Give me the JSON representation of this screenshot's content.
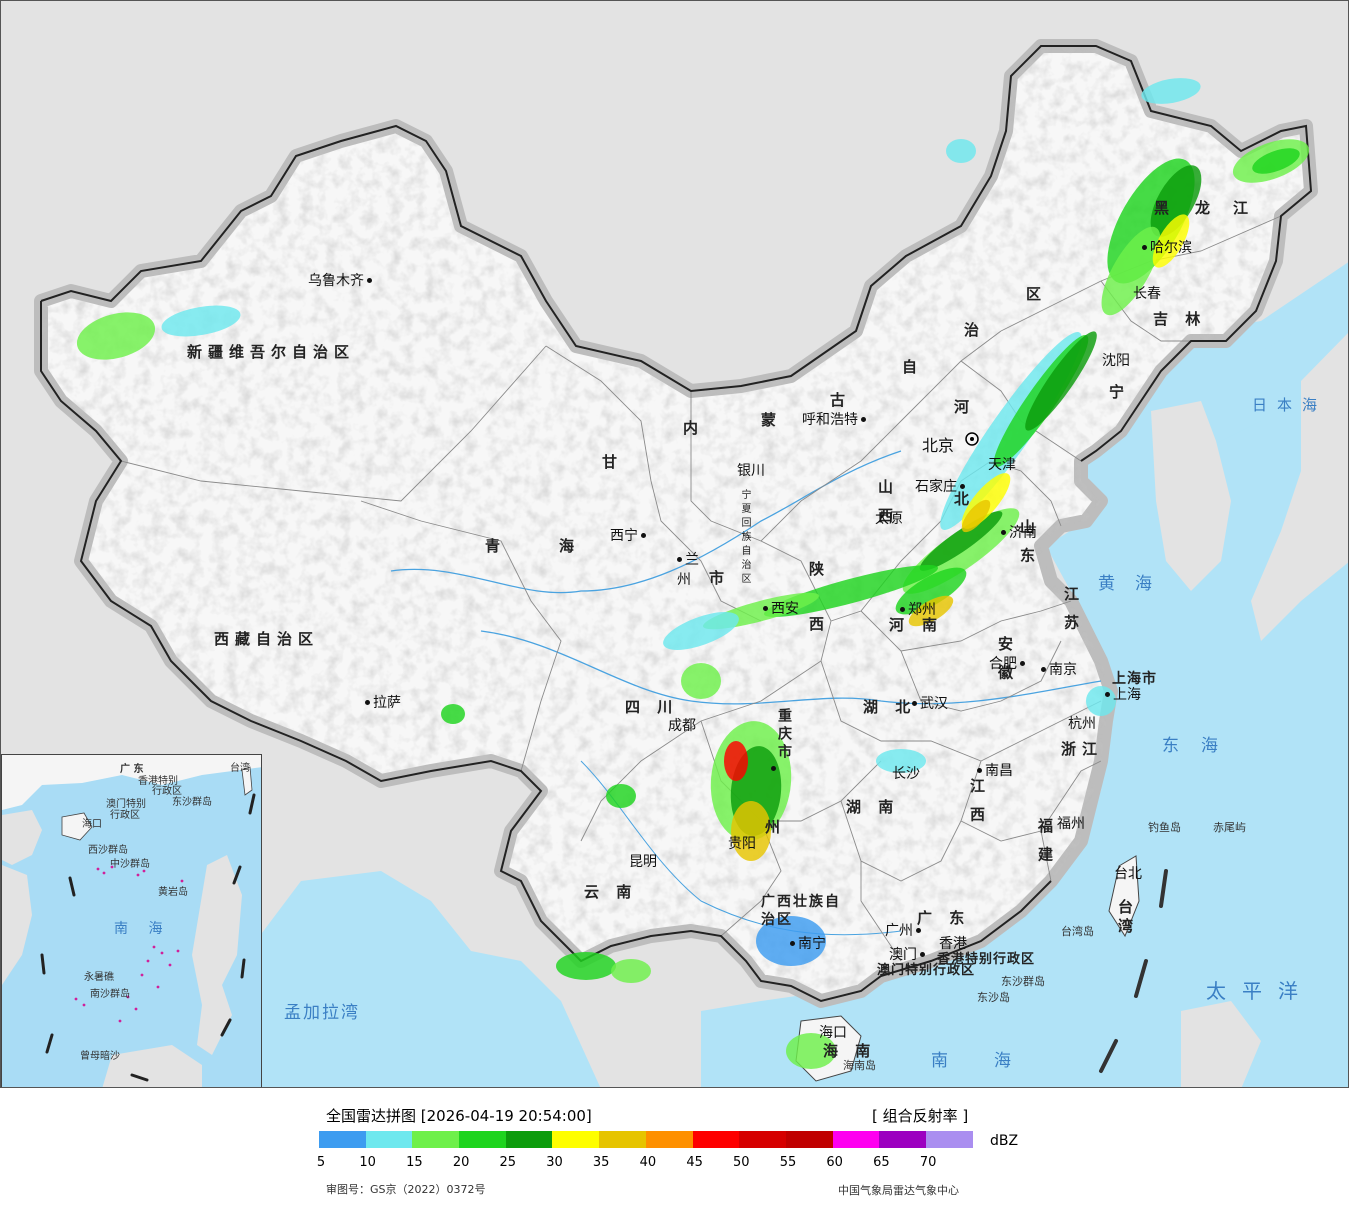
{
  "legend": {
    "title": "全国雷达拼图 [2026-04-19 20:54:00]",
    "product": "[ 组合反射率 ]",
    "unit": "dBZ",
    "colors": [
      "#3d9cf0",
      "#6ee8ee",
      "#6ef04a",
      "#1ed41e",
      "#0c9c0c",
      "#fefe00",
      "#e6c400",
      "#fe9000",
      "#fe0000",
      "#d60000",
      "#c00000",
      "#fe00f0",
      "#9c00c0",
      "#aa8ef0"
    ],
    "ticks": [
      "5",
      "10",
      "15",
      "20",
      "25",
      "30",
      "35",
      "40",
      "45",
      "50",
      "55",
      "60",
      "65",
      "70"
    ],
    "review_number": "审图号：GS京（2022）0372号",
    "producer": "中国气象局雷达气象中心"
  },
  "regions": {
    "xinjiang": "新疆维吾尔自治区",
    "tibet": "西藏自治区",
    "qinghai_1": "青",
    "qinghai_2": "海",
    "gansu": "甘",
    "inner_mongolia": [
      "内",
      "蒙",
      "古",
      "自",
      "治",
      "区"
    ],
    "heilongjiang_1": "黑",
    "heilongjiang_2": "龙",
    "heilongjiang_3": "江",
    "jilin": "吉 林",
    "liaoning": "宁",
    "hebei_1": "河",
    "hebei_2": "北",
    "shanxi": "山 西",
    "shaanxi": "陕 西",
    "ningxia": "宁夏回族自治区",
    "henan": "南",
    "shandong": "山 东",
    "jiangsu": "江 苏",
    "anhui": "安 徽",
    "hubei": "湖 北",
    "sichuan": "四 川",
    "chongqing": "重庆市",
    "guizhou": "州",
    "hunan": "湖 南",
    "jiangxi": "江 西",
    "zhejiang": "浙江",
    "fujian": "福 建",
    "yunnan": "云 南",
    "guangxi": "广西壮族自治区",
    "guangdong": "广 东",
    "hainan": "海 南",
    "taiwan": "台湾",
    "shanghai": "上海市",
    "gansu_shi": "市",
    "hongkong": "香港特别行政区",
    "macau": "澳门特别行政区"
  },
  "cities": {
    "urumqi": "乌鲁木齐",
    "lhasa": "拉萨",
    "xining": "西宁",
    "lanzhou": "兰州",
    "yinchuan": "银川",
    "hohhot": "呼和浩特",
    "beijing": "北京",
    "tianjin": "天津",
    "shijiazhuang": "石家庄",
    "taiyuan": "太原",
    "jinan": "济南",
    "xian": "西安",
    "zhengzhou": "郑州",
    "hefei": "合肥",
    "nanjing": "南京",
    "shanghai": "上海",
    "hangzhou": "杭州",
    "wuhan": "武汉",
    "chengdu": "成都",
    "chongqing": "重庆",
    "guiyang": "贵阳",
    "changsha": "长沙",
    "nanchang": "南昌",
    "fuzhou": "福州",
    "taipei": "台北",
    "kunming": "昆明",
    "nanning": "南宁",
    "guangzhou": "广州",
    "hongkong": "香港",
    "macau": "澳门",
    "haikou": "海口",
    "harbin": "哈尔滨",
    "changchun": "长春",
    "shenyang": "沈阳"
  },
  "islands": {
    "diaoyu": "钓鱼岛",
    "chiwei": "赤尾屿",
    "taiwan_island": "台湾岛",
    "dongsha_islands": "东沙群岛",
    "dongsha_island": "东沙岛",
    "hainan_island": "海南岛"
  },
  "seas": {
    "sea_of_japan": "日本海",
    "yellow_sea": "黄海",
    "east_china_sea": "东海",
    "pacific": "太平洋",
    "south_china_sea": "南海",
    "bay_of_bengal": "孟加拉湾"
  },
  "inset": {
    "south_sea": "南 海",
    "guangdong": "广 东",
    "taiwan": "台湾",
    "hongkong": "香港特别",
    "hongkong2": "行政区",
    "macau": "澳门特别",
    "macau2": "行政区",
    "dongsha": "东沙群岛",
    "haikou": "海口",
    "xisha": "西沙群岛",
    "zhongsha": "中沙群岛",
    "huangyan": "黄岩岛",
    "nansha": "南沙群岛",
    "yongshu": "永暑礁",
    "zengmu": "曾母暗沙"
  }
}
